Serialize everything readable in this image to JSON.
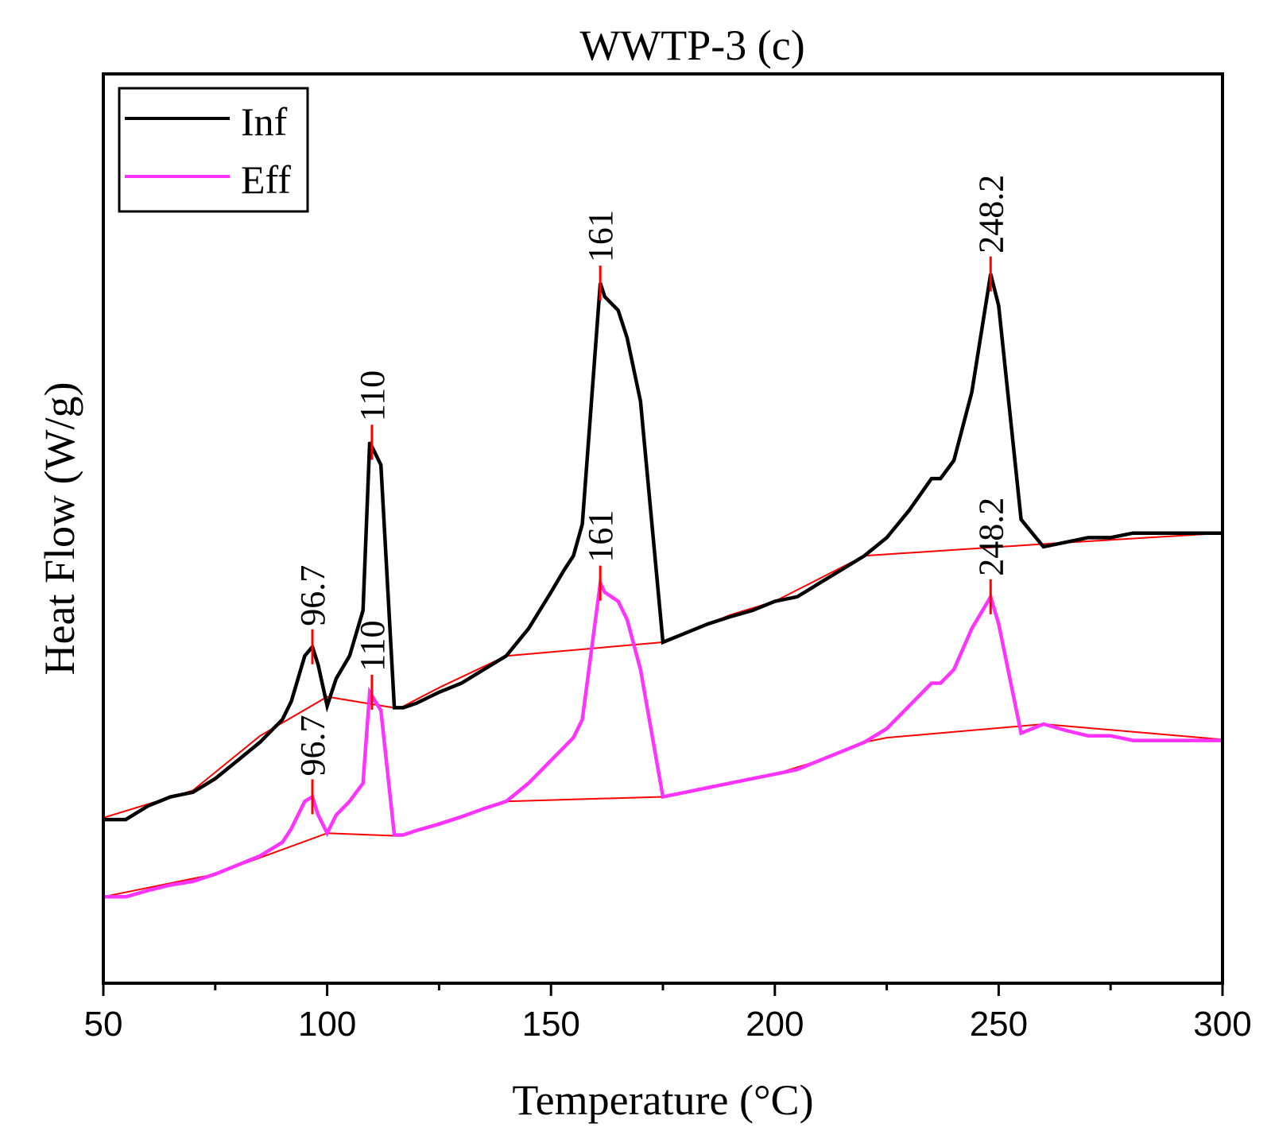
{
  "chart_data": {
    "type": "line",
    "title": "WWTP-3 (c)",
    "xlabel": "Temperature (°C)",
    "ylabel": "Heat Flow (W/g)",
    "xlim": [
      50,
      300
    ],
    "ylim": [
      0,
      100
    ],
    "x_ticks": [
      50,
      100,
      150,
      200,
      250,
      300
    ],
    "x_tick_labels": [
      "50",
      "100",
      "150",
      "200",
      "250",
      "300"
    ],
    "x_minor_ticks": [
      75,
      125,
      175,
      225,
      275
    ],
    "y_ticks_labeled": false,
    "legend_position": "top-left",
    "colors": {
      "inf": "#000000",
      "eff": "#ff33ff",
      "baseline": "#ff0000",
      "marker": "#ff0000"
    },
    "series": [
      {
        "name": "Inf",
        "key": "inf",
        "points": [
          [
            50,
            18
          ],
          [
            55,
            18
          ],
          [
            60,
            19.5
          ],
          [
            65,
            20.5
          ],
          [
            70,
            21
          ],
          [
            75,
            22.5
          ],
          [
            80,
            24.5
          ],
          [
            85,
            26.5
          ],
          [
            90,
            29
          ],
          [
            92,
            31
          ],
          [
            95,
            36
          ],
          [
            96.7,
            37
          ],
          [
            98,
            35
          ],
          [
            100,
            30.5
          ],
          [
            102,
            33.5
          ],
          [
            105,
            36
          ],
          [
            108,
            41
          ],
          [
            109.5,
            59.5
          ],
          [
            112,
            57
          ],
          [
            115,
            30.3
          ],
          [
            117,
            30.3
          ],
          [
            120,
            30.8
          ],
          [
            125,
            32
          ],
          [
            130,
            33
          ],
          [
            135,
            34.5
          ],
          [
            140,
            36
          ],
          [
            145,
            39
          ],
          [
            150,
            43
          ],
          [
            153,
            45.5
          ],
          [
            155,
            47
          ],
          [
            157,
            50.5
          ],
          [
            161,
            77
          ],
          [
            162,
            75.5
          ],
          [
            165,
            74
          ],
          [
            167,
            71
          ],
          [
            170,
            64
          ],
          [
            175,
            37.5
          ],
          [
            180,
            38.5
          ],
          [
            185,
            39.5
          ],
          [
            190,
            40.3
          ],
          [
            195,
            41
          ],
          [
            200,
            42
          ],
          [
            205,
            42.5
          ],
          [
            210,
            44
          ],
          [
            215,
            45.5
          ],
          [
            220,
            47
          ],
          [
            225,
            49
          ],
          [
            230,
            52
          ],
          [
            235,
            55.5
          ],
          [
            237,
            55.5
          ],
          [
            240,
            57.5
          ],
          [
            244,
            65
          ],
          [
            248.2,
            78
          ],
          [
            250,
            74.5
          ],
          [
            255,
            51
          ],
          [
            260,
            48
          ],
          [
            265,
            48.5
          ],
          [
            270,
            49
          ],
          [
            275,
            49
          ],
          [
            280,
            49.5
          ],
          [
            285,
            49.5
          ],
          [
            290,
            49.5
          ],
          [
            300,
            49.5
          ]
        ]
      },
      {
        "name": "Eff",
        "key": "eff",
        "points": [
          [
            50,
            9.5
          ],
          [
            55,
            9.5
          ],
          [
            60,
            10.2
          ],
          [
            65,
            10.8
          ],
          [
            70,
            11.2
          ],
          [
            75,
            12
          ],
          [
            80,
            13
          ],
          [
            85,
            14
          ],
          [
            90,
            15.5
          ],
          [
            92,
            17
          ],
          [
            95,
            20
          ],
          [
            96.7,
            20.5
          ],
          [
            98,
            18.5
          ],
          [
            100,
            16.5
          ],
          [
            102,
            18.5
          ],
          [
            105,
            20
          ],
          [
            108,
            22
          ],
          [
            109.5,
            32
          ],
          [
            112,
            30
          ],
          [
            115,
            16.3
          ],
          [
            117,
            16.3
          ],
          [
            120,
            16.8
          ],
          [
            125,
            17.5
          ],
          [
            130,
            18.3
          ],
          [
            135,
            19.2
          ],
          [
            140,
            20
          ],
          [
            145,
            22
          ],
          [
            150,
            24.5
          ],
          [
            153,
            26
          ],
          [
            155,
            27
          ],
          [
            157,
            29
          ],
          [
            161,
            44
          ],
          [
            162,
            43
          ],
          [
            165,
            42
          ],
          [
            167,
            40
          ],
          [
            170,
            34.5
          ],
          [
            175,
            20.5
          ],
          [
            180,
            21
          ],
          [
            185,
            21.5
          ],
          [
            190,
            22
          ],
          [
            195,
            22.5
          ],
          [
            200,
            23
          ],
          [
            205,
            23.5
          ],
          [
            210,
            24.5
          ],
          [
            215,
            25.5
          ],
          [
            220,
            26.5
          ],
          [
            225,
            28
          ],
          [
            230,
            30.5
          ],
          [
            235,
            33
          ],
          [
            237,
            33
          ],
          [
            240,
            34.5
          ],
          [
            244,
            39
          ],
          [
            248.2,
            42.5
          ],
          [
            250,
            39.5
          ],
          [
            255,
            27.5
          ],
          [
            260,
            28.5
          ],
          [
            265,
            27.8
          ],
          [
            270,
            27.2
          ],
          [
            275,
            27.2
          ],
          [
            280,
            26.7
          ],
          [
            285,
            26.7
          ],
          [
            290,
            26.7
          ],
          [
            300,
            26.7
          ]
        ]
      }
    ],
    "baselines": [
      {
        "series": "Inf",
        "segments": [
          [
            [
              50,
              18.2
            ],
            [
              70,
              21.2
            ],
            [
              85,
              27.2
            ],
            [
              100,
              31.5
            ],
            [
              116,
              30.2
            ]
          ],
          [
            [
              116,
              30.2
            ],
            [
              125,
              32.5
            ],
            [
              140,
              36
            ]
          ],
          [
            [
              140,
              36
            ],
            [
              175,
              37.5
            ]
          ],
          [
            [
              175,
              37.5
            ],
            [
              190,
              40.5
            ],
            [
              200,
              42
            ],
            [
              210,
              44.5
            ],
            [
              220,
              47
            ]
          ],
          [
            [
              220,
              47
            ],
            [
              260,
              48.3
            ]
          ],
          [
            [
              260,
              48.3
            ],
            [
              300,
              49.5
            ]
          ]
        ]
      },
      {
        "series": "Eff",
        "segments": [
          [
            [
              50,
              9.5
            ],
            [
              75,
              12
            ],
            [
              100,
              16.5
            ],
            [
              116,
              16.2
            ]
          ],
          [
            [
              116,
              16.2
            ],
            [
              140,
              20
            ]
          ],
          [
            [
              140,
              20
            ],
            [
              175,
              20.5
            ]
          ],
          [
            [
              175,
              20.5
            ],
            [
              190,
              22
            ],
            [
              200,
              23
            ],
            [
              210,
              24.5
            ],
            [
              220,
              26.5
            ]
          ],
          [
            [
              220,
              26.5
            ],
            [
              225,
              27
            ]
          ],
          [
            [
              225,
              27
            ],
            [
              260,
              28.5
            ]
          ],
          [
            [
              260,
              28.5
            ],
            [
              300,
              26.8
            ]
          ]
        ]
      }
    ],
    "peak_annotations": [
      {
        "series": "Inf",
        "x": 96.7,
        "y": 37,
        "label": "96.7"
      },
      {
        "series": "Inf",
        "x": 110,
        "y": 59.5,
        "label": "110"
      },
      {
        "series": "Inf",
        "x": 161,
        "y": 77,
        "label": "161"
      },
      {
        "series": "Inf",
        "x": 248.2,
        "y": 78,
        "label": "248.2"
      },
      {
        "series": "Eff",
        "x": 96.7,
        "y": 20.5,
        "label": "96.7"
      },
      {
        "series": "Eff",
        "x": 110,
        "y": 32,
        "label": "110"
      },
      {
        "series": "Eff",
        "x": 161,
        "y": 44,
        "label": "161"
      },
      {
        "series": "Eff",
        "x": 248.2,
        "y": 42.5,
        "label": "248.2"
      }
    ]
  }
}
